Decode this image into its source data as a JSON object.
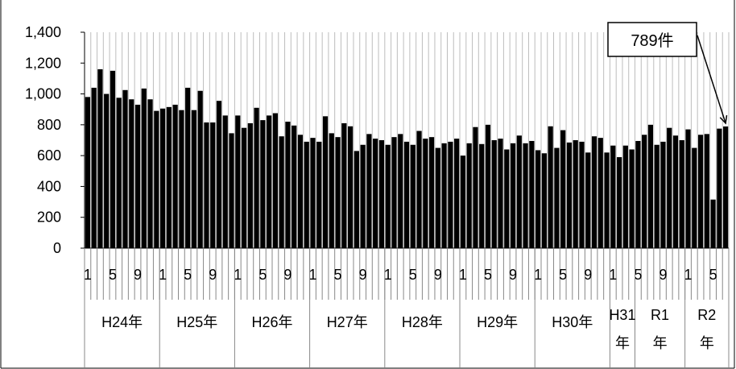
{
  "chart_data": {
    "type": "bar",
    "ylim": [
      0,
      1400
    ],
    "y_ticks": [
      {
        "value": 0,
        "label": "0"
      },
      {
        "value": 200,
        "label": "200"
      },
      {
        "value": 400,
        "label": "400"
      },
      {
        "value": 600,
        "label": "600"
      },
      {
        "value": 800,
        "label": "800"
      },
      {
        "value": 1000,
        "label": "1,000"
      },
      {
        "value": 1200,
        "label": "1,200"
      },
      {
        "value": 1400,
        "label": "1,400"
      }
    ],
    "labeled_months": [
      1,
      5,
      9
    ],
    "grid": "vertical",
    "bar_color": "#000000",
    "grid_color": "#bdbdbd",
    "groups": [
      {
        "label": [
          "H24年"
        ],
        "start_month": 1,
        "values": [
          980,
          1040,
          1160,
          1000,
          1150,
          975,
          1025,
          965,
          930,
          1035,
          965,
          890
        ]
      },
      {
        "label": [
          "H25年"
        ],
        "start_month": 1,
        "values": [
          905,
          915,
          930,
          895,
          1040,
          895,
          1020,
          815,
          815,
          955,
          860,
          745
        ]
      },
      {
        "label": [
          "H26年"
        ],
        "start_month": 1,
        "values": [
          860,
          780,
          810,
          910,
          830,
          860,
          875,
          725,
          820,
          795,
          735,
          690
        ]
      },
      {
        "label": [
          "H27年"
        ],
        "start_month": 1,
        "values": [
          715,
          690,
          855,
          745,
          720,
          810,
          790,
          630,
          670,
          740,
          710,
          700
        ]
      },
      {
        "label": [
          "H28年"
        ],
        "start_month": 1,
        "values": [
          670,
          720,
          740,
          690,
          670,
          760,
          710,
          720,
          650,
          680,
          690,
          710
        ]
      },
      {
        "label": [
          "H29年"
        ],
        "start_month": 1,
        "values": [
          600,
          680,
          785,
          675,
          800,
          700,
          710,
          640,
          680,
          730,
          680,
          695
        ]
      },
      {
        "label": [
          "H30年"
        ],
        "start_month": 1,
        "values": [
          635,
          615,
          790,
          650,
          765,
          685,
          700,
          690,
          620,
          725,
          715,
          620
        ]
      },
      {
        "label": [
          "H31",
          "年"
        ],
        "start_month": 1,
        "values": [
          665,
          590,
          665,
          640
        ]
      },
      {
        "label": [
          "R1",
          "年"
        ],
        "start_month": 5,
        "values": [
          695,
          735,
          800,
          670,
          690,
          780,
          730,
          700
        ]
      },
      {
        "label": [
          "R2",
          "年"
        ],
        "start_month": 1,
        "values": [
          770,
          650,
          735,
          740,
          315,
          775,
          789
        ]
      }
    ],
    "annotation": {
      "text": "789件",
      "value": 789
    }
  }
}
